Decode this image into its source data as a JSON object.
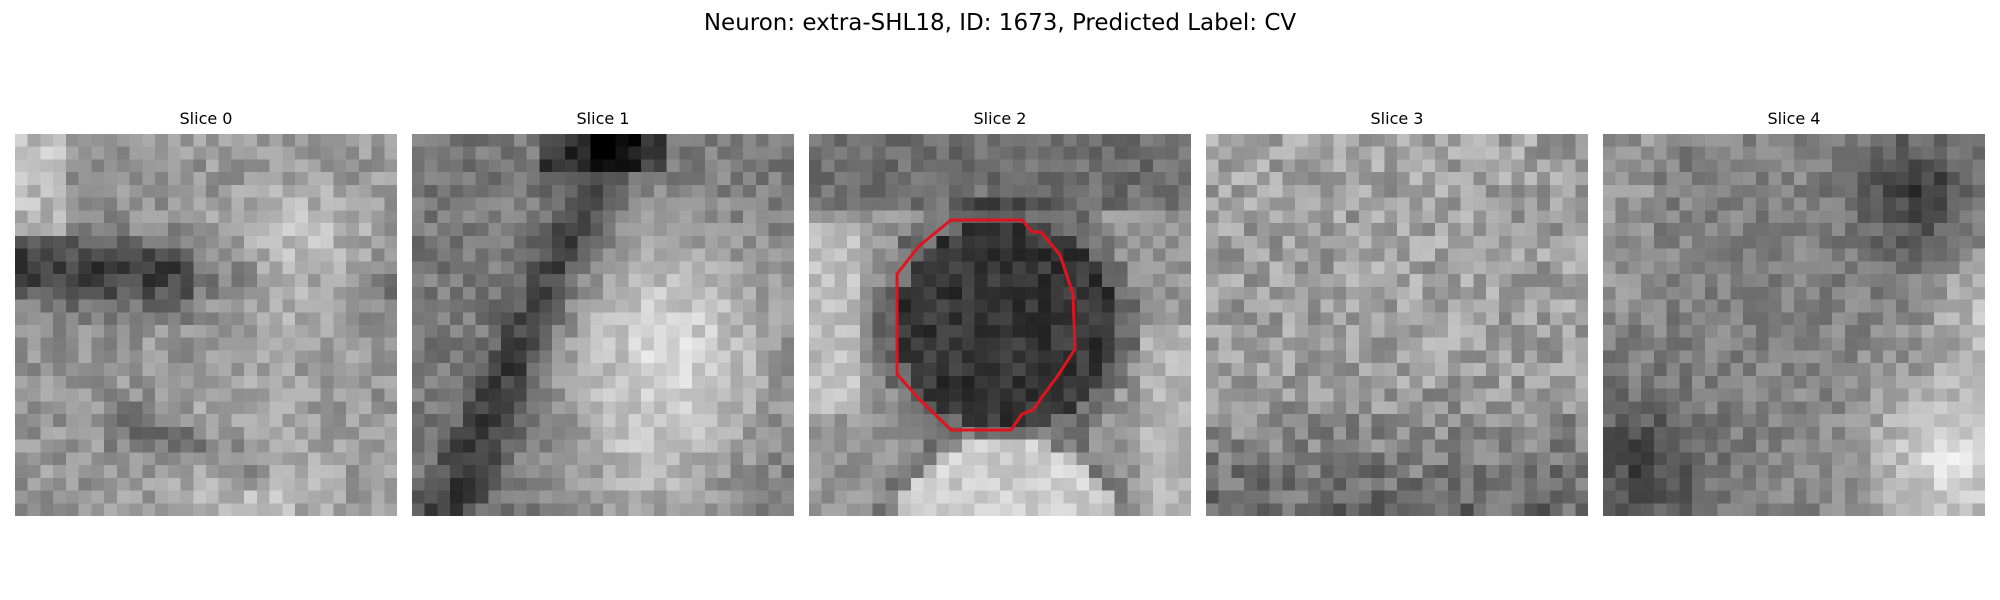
{
  "figure": {
    "title": "Neuron: extra-SHL18, ID: 1673, Predicted Label: CV"
  },
  "panels": [
    {
      "title": "Slice 0"
    },
    {
      "title": "Slice 1"
    },
    {
      "title": "Slice 2"
    },
    {
      "title": "Slice 3"
    },
    {
      "title": "Slice 4"
    }
  ],
  "colors": {
    "contour": "#e0141e",
    "colormap": "gray"
  }
}
